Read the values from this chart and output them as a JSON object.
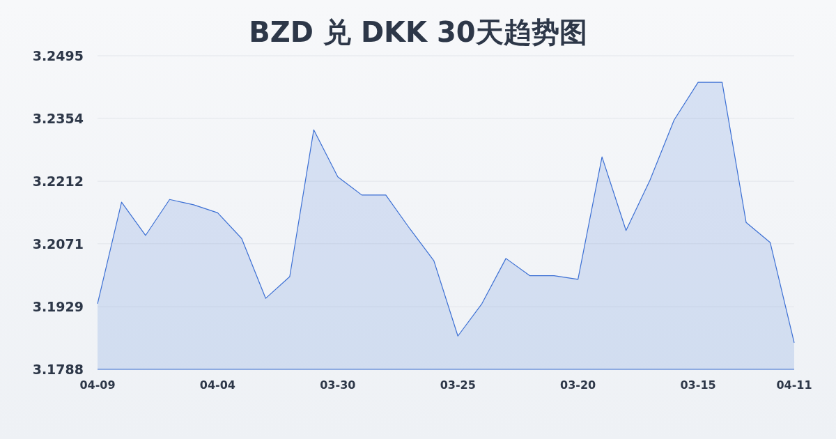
{
  "chart_data": {
    "type": "area",
    "title": "BZD 兑 DKK 30天趋势图",
    "categories": [
      "04-09",
      null,
      null,
      null,
      null,
      "04-04",
      null,
      null,
      null,
      null,
      "03-30",
      null,
      null,
      null,
      null,
      "03-25",
      null,
      null,
      null,
      null,
      "03-20",
      null,
      null,
      null,
      null,
      "03-15",
      null,
      null,
      null,
      "04-11"
    ],
    "series": [
      {
        "color": "#3b6fd4",
        "values": [
          3.1936,
          3.2165,
          3.209,
          3.2171,
          3.2159,
          3.2141,
          3.2083,
          3.1948,
          3.1997,
          3.2328,
          3.2222,
          3.2181,
          3.2181,
          3.2105,
          3.2033,
          3.1863,
          3.1936,
          3.2038,
          3.1999,
          3.1999,
          3.1991,
          3.2267,
          3.2101,
          3.2215,
          3.235,
          3.2435,
          3.2435,
          3.2119,
          3.2074,
          3.1848
        ]
      }
    ],
    "ylim": [
      3.1788,
      3.2495
    ],
    "yticks": [
      3.1788,
      3.1929,
      3.2071,
      3.2212,
      3.2354,
      3.2495
    ],
    "grid": "y"
  }
}
